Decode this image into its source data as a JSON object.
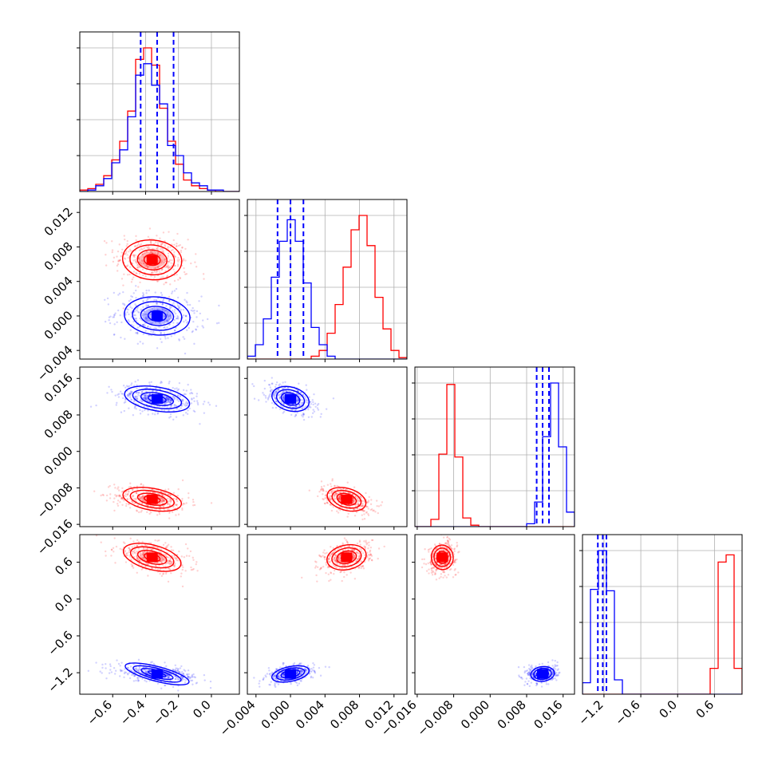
{
  "colors": {
    "series_a": "#ff0000",
    "series_b": "#0000ff",
    "grid": "#b0b0b0"
  },
  "chart_data": {
    "type": "corner",
    "title": "",
    "n_params": 4,
    "grid": true,
    "params": [
      {
        "name": "",
        "range": [
          -0.8,
          0.17
        ],
        "ticks": [
          -0.6,
          -0.4,
          -0.2,
          0.0
        ],
        "tick_labels": [
          "−0.6",
          "−0.4",
          "−0.2",
          "0.0"
        ]
      },
      {
        "name": "",
        "range": [
          -0.005,
          0.0135
        ],
        "ticks": [
          -0.004,
          0.0,
          0.004,
          0.008,
          0.012
        ],
        "tick_labels": [
          "−0.004",
          "0.000",
          "0.004",
          "0.008",
          "0.012"
        ]
      },
      {
        "name": "",
        "range": [
          -0.0165,
          0.0185
        ],
        "ticks": [
          -0.016,
          -0.008,
          0.0,
          0.008,
          0.016
        ],
        "tick_labels": [
          "−0.016",
          "−0.008",
          "0.000",
          "0.008",
          "0.016"
        ]
      },
      {
        "name": "",
        "range": [
          -1.55,
          1.05
        ],
        "ticks": [
          -1.2,
          -0.6,
          0.0,
          0.6
        ],
        "tick_labels": [
          "−1.2",
          "−0.6",
          "0.0",
          "0.6"
        ]
      }
    ],
    "series": [
      {
        "color": "red",
        "means": [
          -0.36,
          0.0065,
          -0.0105,
          0.68
        ],
        "sigmas": [
          0.09,
          0.00115,
          0.0012,
          0.1
        ],
        "histograms": [
          [
            0.01,
            0.02,
            0.05,
            0.11,
            0.22,
            0.35,
            0.56,
            0.92,
            1.0,
            0.88,
            0.58,
            0.35,
            0.19,
            0.08,
            0.04,
            0.02,
            0.01,
            0.0,
            0.0,
            0.0
          ],
          [
            0.0,
            0.0,
            0.0,
            0.0,
            0.0,
            0.0,
            0.0,
            0.0,
            0.02,
            0.06,
            0.18,
            0.38,
            0.64,
            0.9,
            1.0,
            0.79,
            0.43,
            0.21,
            0.06,
            0.01
          ],
          [
            0.0,
            0.0,
            0.05,
            0.5,
            0.98,
            0.48,
            0.06,
            0.01,
            0.0,
            0.0,
            0.0,
            0.0,
            0.0,
            0.0,
            0.0,
            0.0,
            0.0,
            0.0,
            0.0,
            0.0
          ],
          [
            0.0,
            0.0,
            0.0,
            0.0,
            0.0,
            0.0,
            0.0,
            0.0,
            0.0,
            0.0,
            0.0,
            0.0,
            0.0,
            0.0,
            0.0,
            0.0,
            0.18,
            0.92,
            0.97,
            0.18
          ]
        ]
      },
      {
        "color": "blue",
        "means": [
          -0.33,
          0.0,
          0.0115,
          -1.22
        ],
        "sigmas": [
          0.1,
          0.0011,
          0.0013,
          0.06
        ],
        "quantile_lines": [
          [
            -0.43,
            -0.33,
            -0.23
          ],
          [
            -0.0015,
            0.0,
            0.0015
          ],
          [
            0.0102,
            0.0115,
            0.0129
          ],
          [
            -1.3,
            -1.22,
            -1.16
          ]
        ],
        "histograms": [
          [
            0.0,
            0.01,
            0.04,
            0.09,
            0.2,
            0.29,
            0.52,
            0.81,
            0.89,
            0.74,
            0.61,
            0.32,
            0.25,
            0.13,
            0.06,
            0.04,
            0.01,
            0.01,
            0.0,
            0.0
          ],
          [
            0.02,
            0.1,
            0.28,
            0.57,
            0.82,
            0.97,
            0.82,
            0.53,
            0.22,
            0.1,
            0.02,
            0.0,
            0.0,
            0.0,
            0.0,
            0.0,
            0.0,
            0.0,
            0.0,
            0.0
          ],
          [
            0.0,
            0.0,
            0.0,
            0.0,
            0.0,
            0.0,
            0.0,
            0.0,
            0.0,
            0.0,
            0.0,
            0.0,
            0.0,
            0.0,
            0.02,
            0.17,
            0.62,
            0.99,
            0.55,
            0.1
          ],
          [
            0.08,
            0.73,
            1.0,
            0.72,
            0.1,
            0.0,
            0.0,
            0.0,
            0.0,
            0.0,
            0.0,
            0.0,
            0.0,
            0.0,
            0.0,
            0.0,
            0.0,
            0.0,
            0.0,
            0.0
          ]
        ]
      }
    ]
  }
}
